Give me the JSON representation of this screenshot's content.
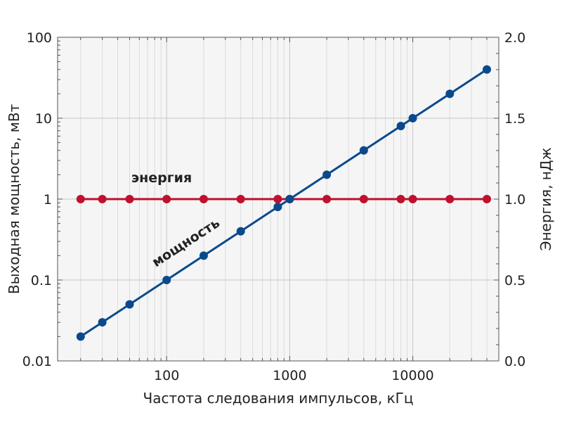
{
  "chart_data": {
    "type": "line",
    "xlabel": "Частота следования импульсов, кГц",
    "ylabel_left": "Выходная мощность, мВт",
    "ylabel_right": "Энергия, нДж",
    "x_scale": "log",
    "y_left_scale": "log",
    "xlim": [
      13,
      50000
    ],
    "ylim_left": [
      0.01,
      100
    ],
    "ylim_right": [
      0.0,
      2.0
    ],
    "grid": true,
    "x_ticks": [
      "100",
      "1000",
      "10000"
    ],
    "y_left_ticks": [
      "0.01",
      "0.1",
      "1",
      "10",
      "100"
    ],
    "y_right_ticks": [
      "0.0",
      "0.5",
      "1.0",
      "1.5",
      "2.0"
    ],
    "series": [
      {
        "name": "мощность",
        "axis": "left",
        "color": "#0a4a8c",
        "x": [
          20,
          30,
          50,
          100,
          200,
          400,
          800,
          1000,
          2000,
          4000,
          8000,
          10000,
          20000,
          40000
        ],
        "y": [
          0.02,
          0.03,
          0.05,
          0.1,
          0.2,
          0.4,
          0.8,
          1.0,
          2.0,
          4.0,
          8.0,
          10.0,
          20.0,
          40.0
        ]
      },
      {
        "name": "энергия",
        "axis": "right",
        "color": "#c0102e",
        "x": [
          20,
          30,
          50,
          100,
          200,
          400,
          800,
          1000,
          2000,
          4000,
          8000,
          10000,
          20000,
          40000
        ],
        "y": [
          1.0,
          1.0,
          1.0,
          1.0,
          1.0,
          1.0,
          1.0,
          1.0,
          1.0,
          1.0,
          1.0,
          1.0,
          1.0,
          1.0
        ]
      }
    ]
  }
}
